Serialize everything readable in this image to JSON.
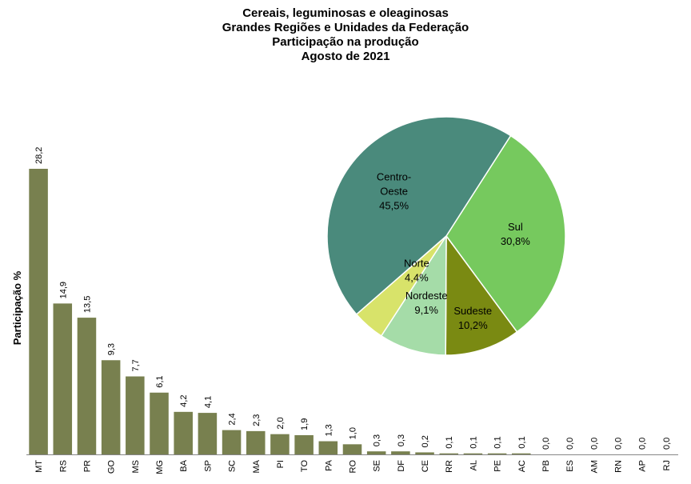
{
  "title_lines": [
    "Cereais, leguminosas e oleaginosas",
    "Grandes Regiões e Unidades da Federação",
    "Participação na produção",
    "Agosto de 2021"
  ],
  "chart_data": [
    {
      "type": "bar",
      "ylabel": "Participação %",
      "xlabel": "",
      "ylim": [
        0,
        30
      ],
      "grid": false,
      "bar_color": "#78804F",
      "categories": [
        "MT",
        "RS",
        "PR",
        "GO",
        "MS",
        "MG",
        "BA",
        "SP",
        "SC",
        "MA",
        "PI",
        "TO",
        "PA",
        "RO",
        "SE",
        "DF",
        "CE",
        "RR",
        "AL",
        "PE",
        "AC",
        "PB",
        "ES",
        "AM",
        "RN",
        "AP",
        "RJ"
      ],
      "values": [
        28.2,
        14.9,
        13.5,
        9.3,
        7.7,
        6.1,
        4.2,
        4.1,
        2.4,
        2.3,
        2.0,
        1.9,
        1.3,
        1.0,
        0.3,
        0.3,
        0.2,
        0.1,
        0.1,
        0.1,
        0.1,
        0.0,
        0.0,
        0.0,
        0.0,
        0.0,
        0.0
      ],
      "value_labels": [
        "28,2",
        "14,9",
        "13,5",
        "9,3",
        "7,7",
        "6,1",
        "4,2",
        "4,1",
        "2,4",
        "2,3",
        "2,0",
        "1,9",
        "1,3",
        "1,0",
        "0,3",
        "0,3",
        "0,2",
        "0,1",
        "0,1",
        "0,1",
        "0,1",
        "0,0",
        "0,0",
        "0,0",
        "0,0",
        "0,0",
        "0,0"
      ]
    },
    {
      "type": "pie",
      "slices": [
        {
          "lines": [
            "Centro-",
            "Oeste",
            "45,5%"
          ],
          "value": 45.5,
          "color": "#4A8A7C"
        },
        {
          "lines": [
            "Sul",
            "30,8%"
          ],
          "value": 30.8,
          "color": "#76C95E"
        },
        {
          "lines": [
            "Sudeste",
            "10,2%"
          ],
          "value": 10.2,
          "color": "#7A8A12"
        },
        {
          "lines": [
            "Nordeste",
            "9,1%"
          ],
          "value": 9.1,
          "color": "#A5DCA8"
        },
        {
          "lines": [
            "Norte",
            "4,4%"
          ],
          "value": 4.4,
          "color": "#D8E36A"
        }
      ]
    }
  ]
}
